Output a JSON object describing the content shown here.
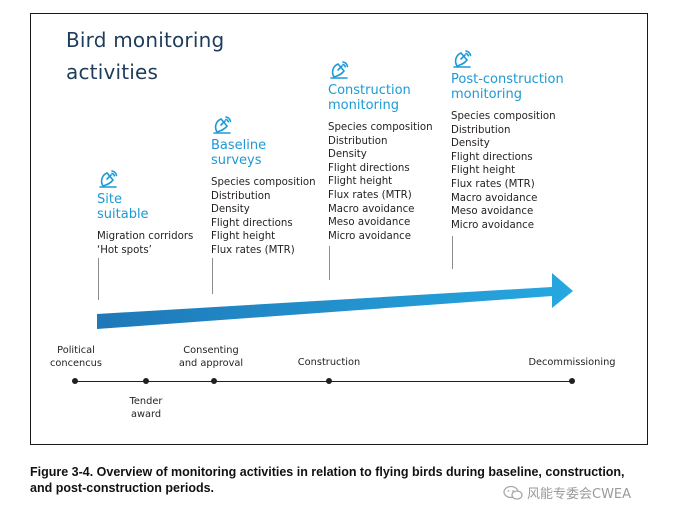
{
  "title_line1": "Bird monitoring",
  "title_line2": "activities",
  "stages": [
    {
      "icon": "radar-dish-icon",
      "heading": [
        "Site",
        "suitable"
      ],
      "items": [
        "Migration corridors",
        "‘Hot spots’"
      ]
    },
    {
      "icon": "radar-dish-icon",
      "heading": [
        "Baseline",
        "surveys"
      ],
      "items": [
        "Species composition",
        "Distribution",
        "Density",
        "Flight directions",
        "Flight height",
        "Flux rates (MTR)"
      ]
    },
    {
      "icon": "radar-dish-icon",
      "heading": [
        "Construction",
        "monitoring"
      ],
      "items": [
        "Species composition",
        "Distribution",
        "Density",
        "Flight directions",
        "Flight height",
        "Flux rates (MTR)",
        "Macro avoidance",
        "Meso avoidance",
        "Micro avoidance"
      ]
    },
    {
      "icon": "radar-dish-icon",
      "heading": [
        "Post-construction",
        "monitoring"
      ],
      "items": [
        "Species composition",
        "Distribution",
        "Density",
        "Flight directions",
        "Flight height",
        "Flux rates (MTR)",
        "Macro avoidance",
        "Meso avoidance",
        "Micro avoidance"
      ]
    }
  ],
  "timeline": [
    {
      "label": [
        "Political",
        "concencus"
      ],
      "position": "above"
    },
    {
      "label": [
        "Tender",
        "award"
      ],
      "position": "below"
    },
    {
      "label": [
        "Consenting",
        "and approval"
      ],
      "position": "above"
    },
    {
      "label": [
        "Construction"
      ],
      "position": "above"
    },
    {
      "label": [
        "Decommissioning"
      ],
      "position": "above"
    }
  ],
  "colors": {
    "accent": "#1b9ad6",
    "title": "#1f3d5a",
    "arrow_start": "#1f78b8",
    "arrow_end": "#26a8e0",
    "text": "#231f20"
  },
  "caption_line1": "Figure 3-4. Overview of monitoring activities in relation to flying birds during baseline, construction,",
  "caption_line2": "and post-construction periods.",
  "watermark_text": "风能专委会CWEA"
}
